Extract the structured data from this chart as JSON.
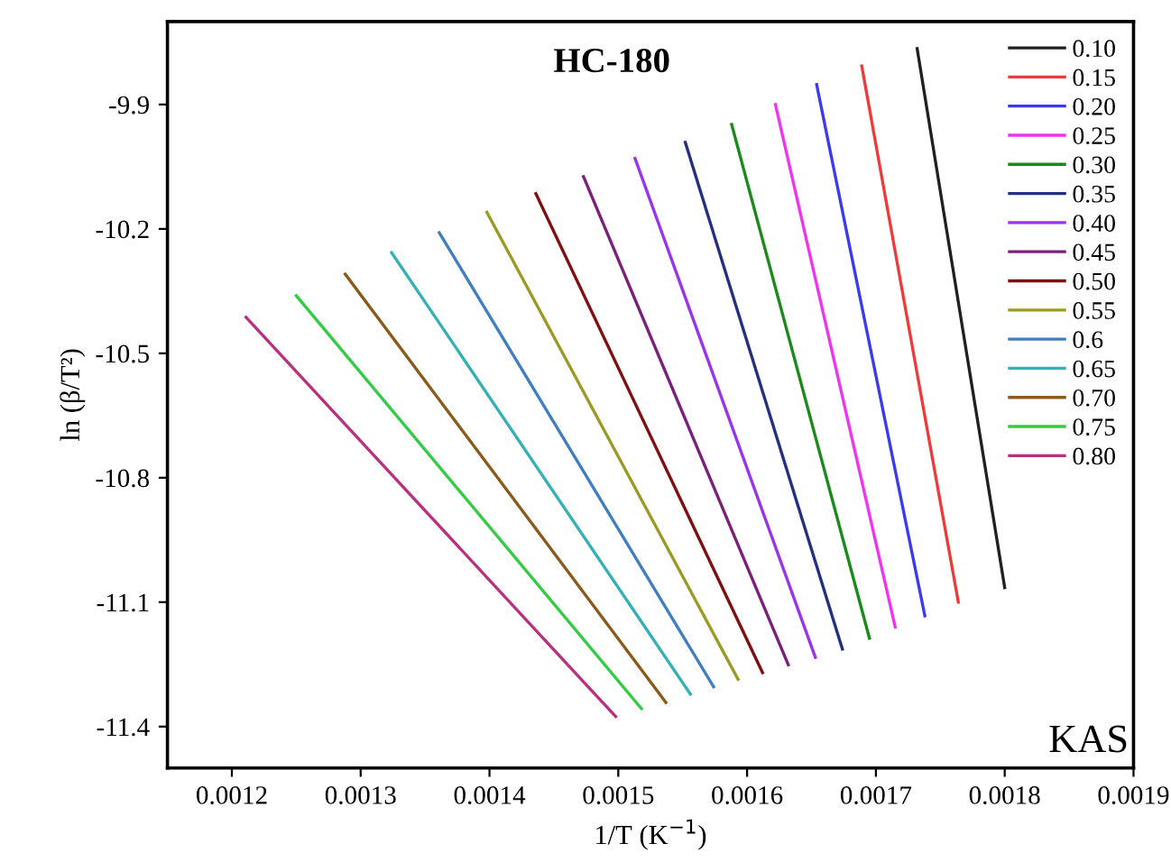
{
  "chart_data": {
    "type": "line",
    "title": "HC-180",
    "xlabel": "1/T (K$^{−1}$)",
    "ylabel": "ln (β/T²)",
    "annotations": [
      "KAS"
    ],
    "xlim": [
      0.00115,
      0.0019
    ],
    "xticks": [
      0.0012,
      0.0013,
      0.0014,
      0.0015,
      0.0016,
      0.0017,
      0.0018,
      0.0019
    ],
    "ylim": [
      -11.5,
      -9.7
    ],
    "yticks": [
      -9.9,
      -10.2,
      -10.5,
      -10.8,
      -11.1,
      -11.4
    ],
    "grid": false,
    "legend": "top right",
    "marker": "none",
    "line_style": "solid",
    "series": [
      {
        "name": "0.10",
        "color": "#202020",
        "x": [
          0.001732,
          0.0018
        ],
        "values": [
          -9.765,
          -11.065
        ]
      },
      {
        "name": "0.15",
        "color": "#f03a3a",
        "x": [
          0.001689,
          0.001764
        ],
        "values": [
          -9.807,
          -11.1
        ]
      },
      {
        "name": "0.20",
        "color": "#3a3af0",
        "x": [
          0.001654,
          0.001738
        ],
        "values": [
          -9.852,
          -11.133
        ]
      },
      {
        "name": "0.25",
        "color": "#f033f0",
        "x": [
          0.001622,
          0.001715
        ],
        "values": [
          -9.9,
          -11.16
        ]
      },
      {
        "name": "0.30",
        "color": "#1a8a1a",
        "x": [
          0.001588,
          0.001695
        ],
        "values": [
          -9.948,
          -11.187
        ]
      },
      {
        "name": "0.35",
        "color": "#22307f",
        "x": [
          0.001552,
          0.001674
        ],
        "values": [
          -9.991,
          -11.213
        ]
      },
      {
        "name": "0.40",
        "color": "#9933ee",
        "x": [
          0.001513,
          0.001653
        ],
        "values": [
          -10.03,
          -11.233
        ]
      },
      {
        "name": "0.45",
        "color": "#7a1f7a",
        "x": [
          0.001473,
          0.001632
        ],
        "values": [
          -10.074,
          -11.251
        ]
      },
      {
        "name": "0.50",
        "color": "#801010",
        "x": [
          0.001436,
          0.001612
        ],
        "values": [
          -10.115,
          -11.27
        ]
      },
      {
        "name": "0.55",
        "color": "#9a9a25",
        "x": [
          0.001398,
          0.001593
        ],
        "values": [
          -10.16,
          -11.286
        ]
      },
      {
        "name": "0.6",
        "color": "#3f7fbf",
        "x": [
          0.001361,
          0.001574
        ],
        "values": [
          -10.209,
          -11.304
        ]
      },
      {
        "name": "0.65",
        "color": "#33b0b8",
        "x": [
          0.001324,
          0.001556
        ],
        "values": [
          -10.257,
          -11.322
        ]
      },
      {
        "name": "0.70",
        "color": "#8a5a1a",
        "x": [
          0.001288,
          0.001537
        ],
        "values": [
          -10.309,
          -11.342
        ]
      },
      {
        "name": "0.75",
        "color": "#33cc44",
        "x": [
          0.00125,
          0.001518
        ],
        "values": [
          -10.361,
          -11.357
        ]
      },
      {
        "name": "0.80",
        "color": "#b8307f",
        "x": [
          0.001211,
          0.001498
        ],
        "values": [
          -10.413,
          -11.376
        ]
      }
    ]
  }
}
